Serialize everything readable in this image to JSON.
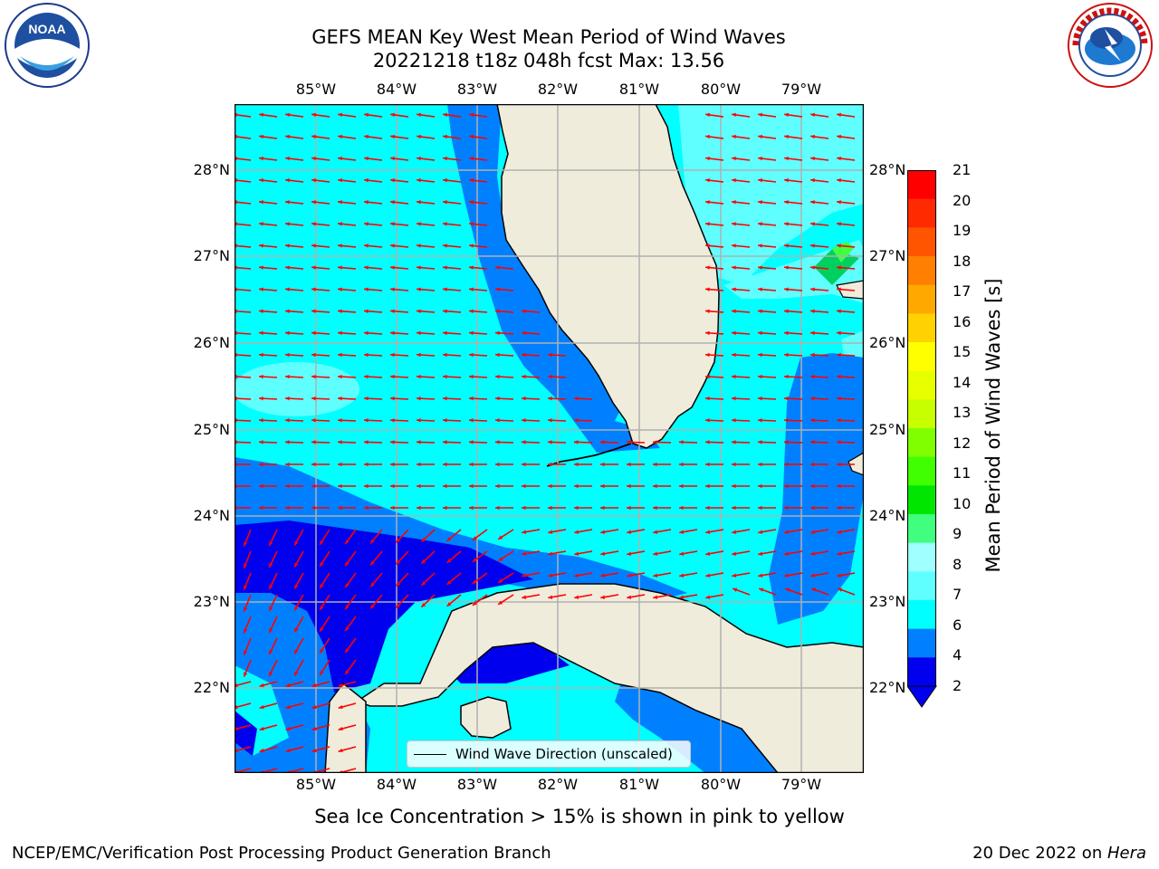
{
  "header": {
    "title_line1": "GEFS MEAN Key West Mean Period of Wind Waves",
    "title_line2": "20221218 t18z 048h fcst   Max: 13.56"
  },
  "logos": {
    "left": {
      "icon": "noaa-logo",
      "text": "NOAA",
      "ring_text": "NATIONAL OCEANIC AND ATMOSPHERIC ADMINISTRATION · U.S. DEPARTMENT OF COMMERCE"
    },
    "right": {
      "icon": "nws-logo",
      "ring_text": "NATIONAL WEATHER SERVICE"
    }
  },
  "map": {
    "lon_labels": [
      "85°W",
      "84°W",
      "83°W",
      "82°W",
      "81°W",
      "80°W",
      "79°W"
    ],
    "lat_labels": [
      "28°N",
      "27°N",
      "26°N",
      "25°N",
      "24°N",
      "23°N",
      "22°N"
    ],
    "legend_label": "Wind Wave Direction (unscaled)",
    "arrow_color": "#ff0000",
    "land_color": "#efecdc"
  },
  "colorbar": {
    "label": "Mean Period of Wind Waves [s]",
    "ticks": [
      "21",
      "20",
      "19",
      "18",
      "17",
      "16",
      "15",
      "14",
      "13",
      "12",
      "11",
      "10",
      "9",
      "8",
      "7",
      "6",
      "4",
      "2"
    ],
    "colors": [
      "#ff0000",
      "#ff2a00",
      "#ff5500",
      "#ff7f00",
      "#ffa800",
      "#ffd200",
      "#ffff00",
      "#e8ff00",
      "#c8ff00",
      "#80ff00",
      "#40ff00",
      "#00e600",
      "#40ff7f",
      "#a0ffff",
      "#60ffff",
      "#00ffff",
      "#0080ff",
      "#0000ee"
    ]
  },
  "notes": {
    "sea_ice": "Sea Ice Concentration > 15% is shown in pink to yellow"
  },
  "footer": {
    "left": "NCEP/EMC/Verification Post Processing Product Generation Branch",
    "right_prefix": "20 Dec 2022 on ",
    "right_host": "Hera"
  }
}
